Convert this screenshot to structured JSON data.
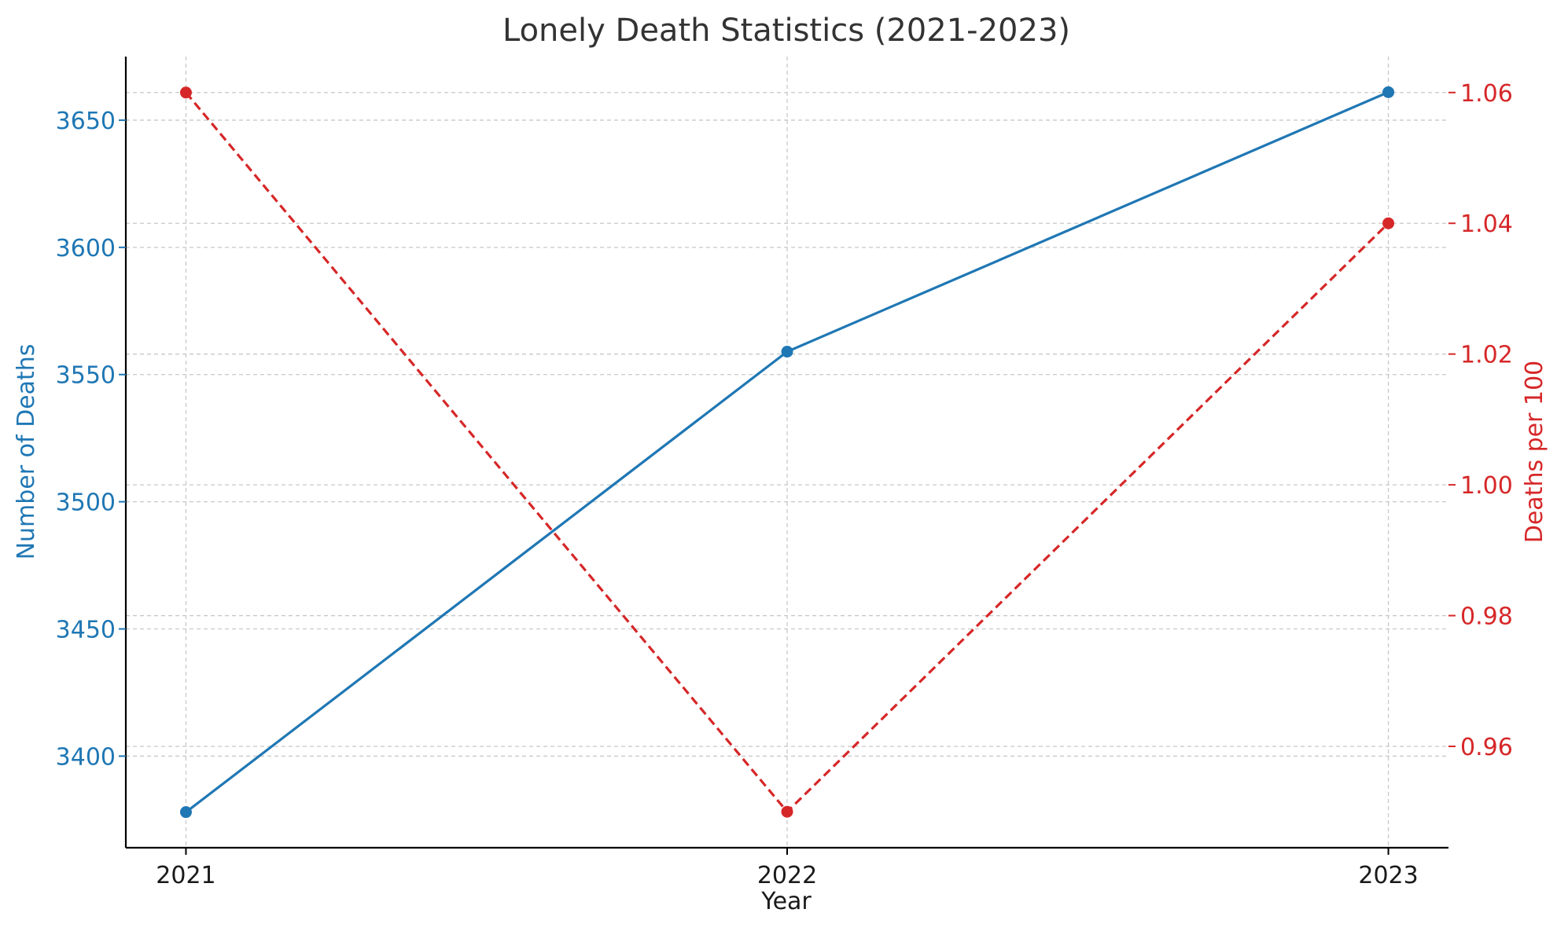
{
  "chart_data": {
    "type": "line",
    "title": "Lonely Death Statistics (2021-2023)",
    "xlabel": "Year",
    "x": [
      2021,
      2022,
      2023
    ],
    "x_tick_labels": [
      "2021",
      "2022",
      "2023"
    ],
    "grid": true,
    "legend": "none",
    "series": [
      {
        "axis": "left",
        "ylabel": "Number of Deaths",
        "values": [
          3378,
          3559,
          3661
        ],
        "color": "#1f77b4",
        "line_style": "solid",
        "marker": "circle",
        "ylim": [
          3364,
          3675
        ],
        "ticks": [
          3400,
          3450,
          3500,
          3550,
          3600,
          3650
        ],
        "tick_labels": [
          "3400",
          "3450",
          "3500",
          "3550",
          "3600",
          "3650"
        ]
      },
      {
        "axis": "right",
        "ylabel": "Deaths per 100",
        "values": [
          1.06,
          0.95,
          1.04
        ],
        "color": "#d62728",
        "line_style": "dashed",
        "marker": "circle",
        "ylim": [
          0.9445,
          1.0655
        ],
        "ticks": [
          0.96,
          0.98,
          1.0,
          1.02,
          1.04,
          1.06
        ],
        "tick_labels": [
          "0.96",
          "0.98",
          "1.00",
          "1.02",
          "1.04",
          "1.06"
        ]
      }
    ]
  }
}
